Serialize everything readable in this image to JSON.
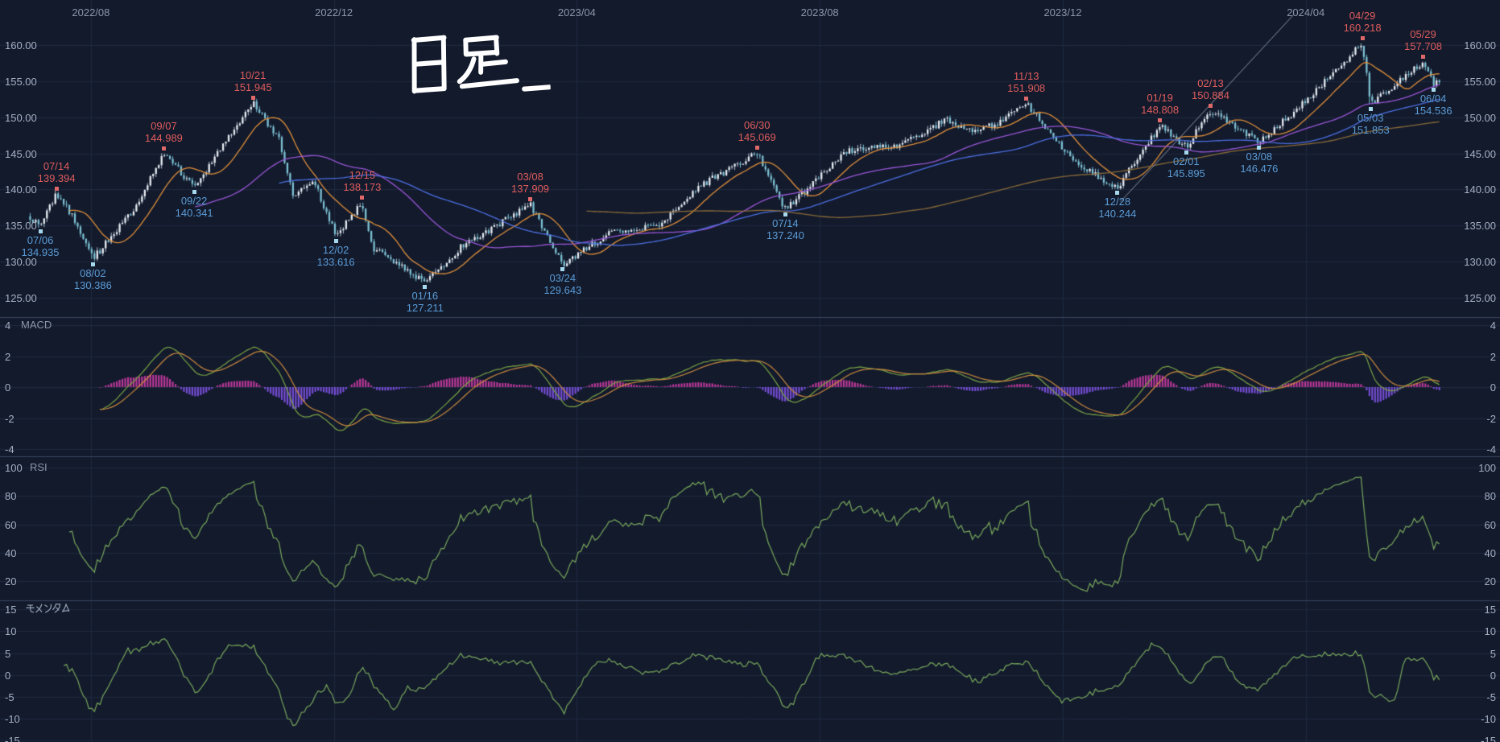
{
  "colors": {
    "bg": "#121a2c",
    "grid": "#1e2940",
    "panel_border": "#3a4660",
    "axis_text": "#a6b0c3",
    "title_text": "#8d97a9",
    "candle_up": "#e8edf3",
    "candle_down": "#7cc0d2",
    "candle_wick": "#b4c3d2",
    "ma_fast": "#e08f3a",
    "ma_mid": "#9a55d6",
    "ma_slow": "#4d6ee0",
    "ma_long": "#8a6a38",
    "peak_text": "#e05c5c",
    "peak_marker": "#e06868",
    "trough_text": "#5b9bd5",
    "trough_marker": "#a5d8ec",
    "macd_line": "#7ba344",
    "macd_signal": "#cd8a3e",
    "hist_pos": "#c43a9f",
    "hist_neg": "#7b50dc",
    "rsi_line": "#7aa85c",
    "mom_line": "#7aa85c",
    "trendline": "#8b93a4",
    "hand_text": "#ffffff"
  },
  "top_axis": {
    "labels": [
      {
        "text": "2022/08",
        "m": 0
      },
      {
        "text": "2022/12",
        "m": 4
      },
      {
        "text": "2023/04",
        "m": 8
      },
      {
        "text": "2023/08",
        "m": 12
      },
      {
        "text": "2023/12",
        "m": 16
      },
      {
        "text": "2024/04",
        "m": 20
      }
    ]
  },
  "main_chart": {
    "price_ticks": [
      {
        "label": "160.00",
        "value": 160
      },
      {
        "label": "155.00",
        "value": 155
      },
      {
        "label": "150.00",
        "value": 150
      },
      {
        "label": "145.00",
        "value": 145
      },
      {
        "label": "140.00",
        "value": 140
      },
      {
        "label": "135.00",
        "value": 135
      },
      {
        "label": "130.00",
        "value": 130
      },
      {
        "label": "125.00",
        "value": 125
      }
    ]
  },
  "panels": {
    "macd": {
      "title": "MACD",
      "ticks": [
        {
          "label": "4",
          "value": 4
        },
        {
          "label": "2",
          "value": 2
        },
        {
          "label": "0",
          "value": 0
        },
        {
          "label": "-2",
          "value": -2
        },
        {
          "label": "-4",
          "value": -4
        }
      ]
    },
    "rsi": {
      "title": "RSI",
      "ticks": [
        {
          "label": "100",
          "value": 100
        },
        {
          "label": "80",
          "value": 80
        },
        {
          "label": "60",
          "value": 60
        },
        {
          "label": "40",
          "value": 40
        },
        {
          "label": "20",
          "value": 20
        }
      ]
    },
    "momentum": {
      "title": "モメンタム",
      "ticks": [
        {
          "label": "15",
          "value": 15
        },
        {
          "label": "10",
          "value": 10
        },
        {
          "label": "5",
          "value": 5
        },
        {
          "label": "0",
          "value": 0
        },
        {
          "label": "-5",
          "value": -5
        },
        {
          "label": "-10",
          "value": -10
        },
        {
          "label": "-15",
          "value": -15
        }
      ]
    }
  },
  "chart_data": {
    "type": "candlestick",
    "timeframe_label": "日足",
    "x_range": {
      "start": "2022/07/01",
      "end": "2024/06/07"
    },
    "y_axis": {
      "min": 125,
      "max": 160,
      "step": 5
    },
    "candle_count": 505,
    "keypoints": [
      {
        "date": "2022/07/01",
        "m": -1.0,
        "price": 136.2,
        "kind": "path"
      },
      {
        "date": "2022/07/06",
        "m": -0.833,
        "price": 134.935,
        "kind": "trough",
        "label": "07/06",
        "price_label": "134.935"
      },
      {
        "date": "2022/07/14",
        "m": -0.567,
        "price": 139.394,
        "kind": "peak",
        "label": "07/14",
        "price_label": "139.394"
      },
      {
        "date": "2022/07/22",
        "m": -0.3,
        "price": 136.3,
        "kind": "path"
      },
      {
        "date": "2022/08/02",
        "m": 0.033,
        "price": 130.386,
        "kind": "trough",
        "label": "08/02",
        "price_label": "130.386"
      },
      {
        "date": "2022/08/23",
        "m": 0.733,
        "price": 137.4,
        "kind": "path"
      },
      {
        "date": "2022/09/07",
        "m": 1.2,
        "price": 144.989,
        "kind": "peak",
        "label": "09/07",
        "price_label": "144.989"
      },
      {
        "date": "2022/09/22",
        "m": 1.7,
        "price": 140.341,
        "kind": "trough",
        "label": "09/22",
        "price_label": "140.341"
      },
      {
        "date": "2022/10/21",
        "m": 2.667,
        "price": 151.945,
        "kind": "peak",
        "label": "10/21",
        "price_label": "151.945"
      },
      {
        "date": "2022/11/04",
        "m": 3.1,
        "price": 146.8,
        "kind": "path"
      },
      {
        "date": "2022/11/11",
        "m": 3.333,
        "price": 138.9,
        "kind": "path"
      },
      {
        "date": "2022/11/21",
        "m": 3.667,
        "price": 141.2,
        "kind": "path"
      },
      {
        "date": "2022/12/02",
        "m": 4.033,
        "price": 133.616,
        "kind": "trough",
        "label": "12/02",
        "price_label": "133.616"
      },
      {
        "date": "2022/12/15",
        "m": 4.467,
        "price": 138.173,
        "kind": "peak",
        "label": "12/15",
        "price_label": "138.173"
      },
      {
        "date": "2022/12/20",
        "m": 4.633,
        "price": 131.9,
        "kind": "path"
      },
      {
        "date": "2023/01/16",
        "m": 5.5,
        "price": 127.211,
        "kind": "trough",
        "label": "01/16",
        "price_label": "127.211"
      },
      {
        "date": "2023/02/06",
        "m": 6.167,
        "price": 132.6,
        "kind": "path"
      },
      {
        "date": "2023/02/17",
        "m": 6.533,
        "price": 134.3,
        "kind": "path"
      },
      {
        "date": "2023/03/08",
        "m": 7.233,
        "price": 137.909,
        "kind": "peak",
        "label": "03/08",
        "price_label": "137.909"
      },
      {
        "date": "2023/03/24",
        "m": 7.767,
        "price": 129.643,
        "kind": "trough",
        "label": "03/24",
        "price_label": "129.643"
      },
      {
        "date": "2023/04/19",
        "m": 8.6,
        "price": 134.3,
        "kind": "path"
      },
      {
        "date": "2023/05/11",
        "m": 9.333,
        "price": 134.8,
        "kind": "path"
      },
      {
        "date": "2023/05/30",
        "m": 9.967,
        "price": 140.2,
        "kind": "path"
      },
      {
        "date": "2023/06/30",
        "m": 10.967,
        "price": 145.069,
        "kind": "peak",
        "label": "06/30",
        "price_label": "145.069"
      },
      {
        "date": "2023/07/14",
        "m": 11.433,
        "price": 137.24,
        "kind": "trough",
        "label": "07/14",
        "price_label": "137.240"
      },
      {
        "date": "2023/08/15",
        "m": 12.467,
        "price": 145.4,
        "kind": "path"
      },
      {
        "date": "2023/09/11",
        "m": 13.333,
        "price": 146.2,
        "kind": "path"
      },
      {
        "date": "2023/10/03",
        "m": 14.067,
        "price": 149.6,
        "kind": "path"
      },
      {
        "date": "2023/10/18",
        "m": 14.6,
        "price": 148.0,
        "kind": "path"
      },
      {
        "date": "2023/10/30",
        "m": 14.967,
        "price": 149.4,
        "kind": "path"
      },
      {
        "date": "2023/11/13",
        "m": 15.4,
        "price": 151.908,
        "kind": "peak",
        "label": "11/13",
        "price_label": "151.908"
      },
      {
        "date": "2023/12/07",
        "m": 16.2,
        "price": 143.6,
        "kind": "path"
      },
      {
        "date": "2023/12/28",
        "m": 16.9,
        "price": 140.244,
        "kind": "trough",
        "label": "12/28",
        "price_label": "140.244"
      },
      {
        "date": "2024/01/19",
        "m": 17.6,
        "price": 148.808,
        "kind": "peak",
        "label": "01/19",
        "price_label": "148.808"
      },
      {
        "date": "2024/02/01",
        "m": 18.033,
        "price": 145.895,
        "kind": "trough",
        "label": "02/01",
        "price_label": "145.895"
      },
      {
        "date": "2024/02/13",
        "m": 18.433,
        "price": 150.884,
        "kind": "peak",
        "label": "02/13",
        "price_label": "150.884"
      },
      {
        "date": "2024/03/08",
        "m": 19.233,
        "price": 146.476,
        "kind": "trough",
        "label": "03/08",
        "price_label": "146.476"
      },
      {
        "date": "2024/03/27",
        "m": 19.867,
        "price": 151.2,
        "kind": "path"
      },
      {
        "date": "2024/04/29",
        "m": 20.933,
        "price": 160.218,
        "kind": "peak",
        "label": "04/29",
        "price_label": "160.218"
      },
      {
        "date": "2024/05/03",
        "m": 21.067,
        "price": 151.853,
        "kind": "trough",
        "label": "05/03",
        "price_label": "151.853"
      },
      {
        "date": "2024/05/29",
        "m": 21.933,
        "price": 157.708,
        "kind": "peak",
        "label": "05/29",
        "price_label": "157.708"
      },
      {
        "date": "2024/06/04",
        "m": 22.1,
        "price": 154.536,
        "kind": "trough",
        "label": "06/04",
        "price_label": "154.536"
      },
      {
        "date": "2024/06/07",
        "m": 22.2,
        "price": 155.2,
        "kind": "path"
      }
    ],
    "moving_averages": [
      {
        "period": 15,
        "color": "#e08f3a"
      },
      {
        "period": 60,
        "color": "#9a55d6"
      },
      {
        "period": 90,
        "color": "#4d6ee0"
      },
      {
        "period": 200,
        "color": "#8a6a38"
      }
    ],
    "indicators": {
      "macd": {
        "fast": 12,
        "slow": 26,
        "signal": 9,
        "axis": [
          -4,
          4
        ]
      },
      "rsi": {
        "period": 14,
        "axis": [
          20,
          100
        ]
      },
      "momentum": {
        "period": 12,
        "axis": [
          -15,
          15
        ]
      }
    },
    "trendline": {
      "from": {
        "m": 16.95,
        "price": 138.3
      },
      "to": {
        "m": 19.8,
        "price": 164.2
      }
    }
  }
}
